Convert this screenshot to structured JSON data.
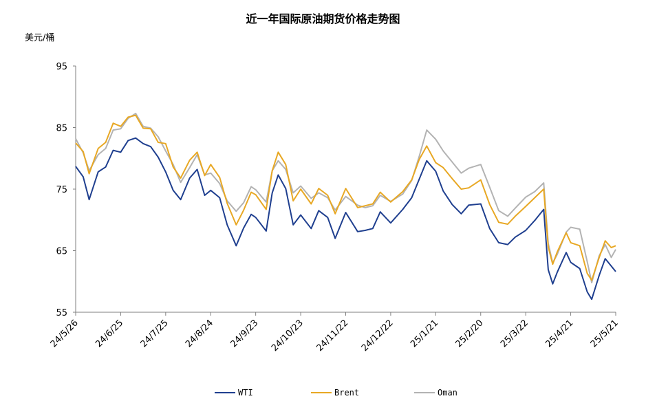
{
  "chart_data": {
    "type": "line",
    "title": "近一年国际原油期货价格走势图",
    "ylabel": "美元/桶",
    "xlabel": "",
    "ylim": [
      55,
      95
    ],
    "yticks": [
      "55",
      "65",
      "75",
      "85",
      "95"
    ],
    "xticks": [
      "24/5/26",
      "24/6/25",
      "24/7/25",
      "24/8/24",
      "24/9/23",
      "24/10/23",
      "24/11/22",
      "24/12/22",
      "25/1/21",
      "25/2/20",
      "25/3/22",
      "25/4/21",
      "25/5/21"
    ],
    "legend_position": "bottom",
    "grid": false,
    "series": [
      {
        "name": "WTI",
        "color": "#1f3f8f",
        "points": [
          [
            "24/5/26",
            78.7
          ],
          [
            "24/5/31",
            77.0
          ],
          [
            "24/6/4",
            73.3
          ],
          [
            "24/6/10",
            77.8
          ],
          [
            "24/6/15",
            78.6
          ],
          [
            "24/6/20",
            81.3
          ],
          [
            "24/6/25",
            81.0
          ],
          [
            "24/6/30",
            82.9
          ],
          [
            "24/7/5",
            83.3
          ],
          [
            "24/7/10",
            82.4
          ],
          [
            "24/7/15",
            81.9
          ],
          [
            "24/7/20",
            80.2
          ],
          [
            "24/7/25",
            77.8
          ],
          [
            "24/7/30",
            74.8
          ],
          [
            "24/8/4",
            73.3
          ],
          [
            "24/8/10",
            76.8
          ],
          [
            "24/8/15",
            78.2
          ],
          [
            "24/8/20",
            74.0
          ],
          [
            "24/8/24",
            74.8
          ],
          [
            "24/8/30",
            73.6
          ],
          [
            "24/9/4",
            69.2
          ],
          [
            "24/9/10",
            65.8
          ],
          [
            "24/9/15",
            68.7
          ],
          [
            "24/9/20",
            70.9
          ],
          [
            "24/9/23",
            70.4
          ],
          [
            "24/9/30",
            68.2
          ],
          [
            "24/10/4",
            74.4
          ],
          [
            "24/10/8",
            77.3
          ],
          [
            "24/10/13",
            75.1
          ],
          [
            "24/10/18",
            69.2
          ],
          [
            "24/10/23",
            70.8
          ],
          [
            "24/10/30",
            68.6
          ],
          [
            "24/11/4",
            71.5
          ],
          [
            "24/11/10",
            70.4
          ],
          [
            "24/11/15",
            67.0
          ],
          [
            "24/11/22",
            71.2
          ],
          [
            "24/11/30",
            68.1
          ],
          [
            "24/12/5",
            68.3
          ],
          [
            "24/12/10",
            68.6
          ],
          [
            "24/12/15",
            71.3
          ],
          [
            "24/12/22",
            69.5
          ],
          [
            "24/12/30",
            71.7
          ],
          [
            "25/1/5",
            73.6
          ],
          [
            "25/1/10",
            76.6
          ],
          [
            "25/1/15",
            79.6
          ],
          [
            "25/1/21",
            77.9
          ],
          [
            "25/1/26",
            74.7
          ],
          [
            "25/2/1",
            72.5
          ],
          [
            "25/2/7",
            71.0
          ],
          [
            "25/2/12",
            72.4
          ],
          [
            "25/2/20",
            72.6
          ],
          [
            "25/2/26",
            68.6
          ],
          [
            "25/3/4",
            66.3
          ],
          [
            "25/3/10",
            66.0
          ],
          [
            "25/3/15",
            67.2
          ],
          [
            "25/3/22",
            68.3
          ],
          [
            "25/3/28",
            69.9
          ],
          [
            "25/4/3",
            71.7
          ],
          [
            "25/4/6",
            61.9
          ],
          [
            "25/4/9",
            59.6
          ],
          [
            "25/4/12",
            61.5
          ],
          [
            "25/4/18",
            64.7
          ],
          [
            "25/4/21",
            63.1
          ],
          [
            "25/4/27",
            62.1
          ],
          [
            "25/5/2",
            58.3
          ],
          [
            "25/5/5",
            57.1
          ],
          [
            "25/5/10",
            61.0
          ],
          [
            "25/5/14",
            63.7
          ],
          [
            "25/5/18",
            62.5
          ],
          [
            "25/5/21",
            61.6
          ]
        ]
      },
      {
        "name": "Brent",
        "color": "#e8a824",
        "points": [
          [
            "24/5/26",
            82.5
          ],
          [
            "24/5/31",
            81.1
          ],
          [
            "24/6/4",
            77.5
          ],
          [
            "24/6/10",
            81.6
          ],
          [
            "24/6/15",
            82.6
          ],
          [
            "24/6/20",
            85.7
          ],
          [
            "24/6/25",
            85.2
          ],
          [
            "24/6/30",
            86.7
          ],
          [
            "24/7/5",
            87.0
          ],
          [
            "24/7/10",
            84.9
          ],
          [
            "24/7/15",
            84.8
          ],
          [
            "24/7/20",
            82.6
          ],
          [
            "24/7/25",
            82.4
          ],
          [
            "24/7/30",
            78.6
          ],
          [
            "24/8/4",
            76.8
          ],
          [
            "24/8/10",
            79.7
          ],
          [
            "24/8/15",
            81.0
          ],
          [
            "24/8/20",
            77.2
          ],
          [
            "24/8/24",
            79.0
          ],
          [
            "24/8/30",
            76.9
          ],
          [
            "24/9/4",
            72.7
          ],
          [
            "24/9/10",
            69.2
          ],
          [
            "24/9/15",
            71.6
          ],
          [
            "24/9/20",
            74.5
          ],
          [
            "24/9/23",
            74.1
          ],
          [
            "24/9/30",
            71.7
          ],
          [
            "24/10/4",
            78.0
          ],
          [
            "24/10/8",
            81.0
          ],
          [
            "24/10/13",
            79.0
          ],
          [
            "24/10/18",
            73.1
          ],
          [
            "24/10/23",
            75.0
          ],
          [
            "24/10/30",
            72.6
          ],
          [
            "24/11/4",
            75.1
          ],
          [
            "24/11/10",
            74.0
          ],
          [
            "24/11/15",
            71.0
          ],
          [
            "24/11/22",
            75.1
          ],
          [
            "24/11/30",
            72.0
          ],
          [
            "24/12/5",
            72.3
          ],
          [
            "24/12/10",
            72.6
          ],
          [
            "24/12/15",
            74.5
          ],
          [
            "24/12/22",
            72.9
          ],
          [
            "24/12/30",
            74.6
          ],
          [
            "25/1/5",
            76.5
          ],
          [
            "25/1/10",
            79.8
          ],
          [
            "25/1/15",
            82.0
          ],
          [
            "25/1/21",
            79.3
          ],
          [
            "25/1/26",
            78.5
          ],
          [
            "25/2/1",
            76.7
          ],
          [
            "25/2/7",
            75.0
          ],
          [
            "25/2/12",
            75.2
          ],
          [
            "25/2/20",
            76.5
          ],
          [
            "25/2/26",
            72.5
          ],
          [
            "25/3/4",
            69.6
          ],
          [
            "25/3/10",
            69.3
          ],
          [
            "25/3/15",
            70.6
          ],
          [
            "25/3/22",
            72.2
          ],
          [
            "25/3/28",
            73.6
          ],
          [
            "25/4/3",
            75.0
          ],
          [
            "25/4/6",
            65.6
          ],
          [
            "25/4/9",
            62.8
          ],
          [
            "25/4/12",
            64.8
          ],
          [
            "25/4/18",
            67.9
          ],
          [
            "25/4/21",
            66.3
          ],
          [
            "25/4/27",
            65.8
          ],
          [
            "25/5/2",
            61.3
          ],
          [
            "25/5/5",
            60.2
          ],
          [
            "25/5/10",
            63.9
          ],
          [
            "25/5/14",
            66.6
          ],
          [
            "25/5/18",
            65.5
          ],
          [
            "25/5/21",
            65.8
          ]
        ]
      },
      {
        "name": "Oman",
        "color": "#b3b3b3",
        "points": [
          [
            "24/5/26",
            83.2
          ],
          [
            "24/5/31",
            80.9
          ],
          [
            "24/6/4",
            78.0
          ],
          [
            "24/6/10",
            80.6
          ],
          [
            "24/6/15",
            81.6
          ],
          [
            "24/6/20",
            84.6
          ],
          [
            "24/6/25",
            84.8
          ],
          [
            "24/6/30",
            86.5
          ],
          [
            "24/7/5",
            87.3
          ],
          [
            "24/7/10",
            85.2
          ],
          [
            "24/7/15",
            84.9
          ],
          [
            "24/7/20",
            83.5
          ],
          [
            "24/7/25",
            81.2
          ],
          [
            "24/7/30",
            79.0
          ],
          [
            "24/8/4",
            76.1
          ],
          [
            "24/8/10",
            78.5
          ],
          [
            "24/8/15",
            80.6
          ],
          [
            "24/8/20",
            77.3
          ],
          [
            "24/8/24",
            77.6
          ],
          [
            "24/8/30",
            75.9
          ],
          [
            "24/9/4",
            73.1
          ],
          [
            "24/9/10",
            71.4
          ],
          [
            "24/9/15",
            72.8
          ],
          [
            "24/9/20",
            75.4
          ],
          [
            "24/9/23",
            74.9
          ],
          [
            "24/9/30",
            72.9
          ],
          [
            "24/10/4",
            78.0
          ],
          [
            "24/10/8",
            79.6
          ],
          [
            "24/10/13",
            78.2
          ],
          [
            "24/10/18",
            74.4
          ],
          [
            "24/10/23",
            75.5
          ],
          [
            "24/10/30",
            73.5
          ],
          [
            "24/11/4",
            74.4
          ],
          [
            "24/11/10",
            73.6
          ],
          [
            "24/11/15",
            71.6
          ],
          [
            "24/11/22",
            73.8
          ],
          [
            "24/11/30",
            72.4
          ],
          [
            "24/12/5",
            72.0
          ],
          [
            "24/12/10",
            72.3
          ],
          [
            "24/12/15",
            74.0
          ],
          [
            "24/12/22",
            73.0
          ],
          [
            "24/12/30",
            74.2
          ],
          [
            "25/1/5",
            76.4
          ],
          [
            "25/1/10",
            80.3
          ],
          [
            "25/1/15",
            84.6
          ],
          [
            "25/1/21",
            83.1
          ],
          [
            "25/1/26",
            81.2
          ],
          [
            "25/2/1",
            79.4
          ],
          [
            "25/2/7",
            77.6
          ],
          [
            "25/2/12",
            78.4
          ],
          [
            "25/2/20",
            79.0
          ],
          [
            "25/2/26",
            75.3
          ],
          [
            "25/3/4",
            71.5
          ],
          [
            "25/3/10",
            70.6
          ],
          [
            "25/3/15",
            71.9
          ],
          [
            "25/3/22",
            73.7
          ],
          [
            "25/3/28",
            74.6
          ],
          [
            "25/4/3",
            76.0
          ],
          [
            "25/4/6",
            66.2
          ],
          [
            "25/4/9",
            63.0
          ],
          [
            "25/4/12",
            64.4
          ],
          [
            "25/4/18",
            68.0
          ],
          [
            "25/4/21",
            68.8
          ],
          [
            "25/4/27",
            68.5
          ],
          [
            "25/5/2",
            63.2
          ],
          [
            "25/5/5",
            59.8
          ],
          [
            "25/5/10",
            64.2
          ],
          [
            "25/5/14",
            66.0
          ],
          [
            "25/5/18",
            63.9
          ],
          [
            "25/5/21",
            65.2
          ]
        ]
      }
    ]
  }
}
